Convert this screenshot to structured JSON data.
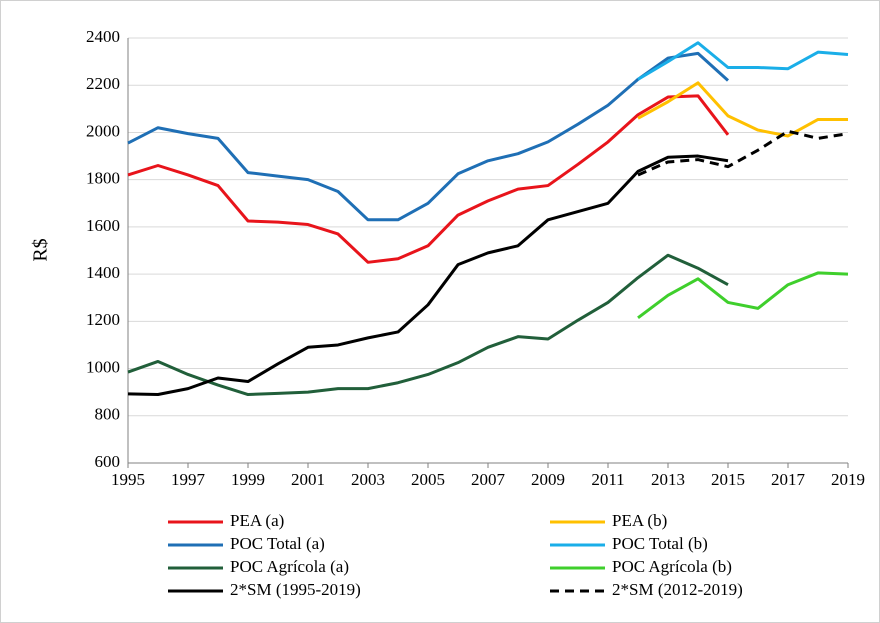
{
  "chart_data": {
    "type": "line",
    "y_label": "R$",
    "x": [
      1995,
      1996,
      1997,
      1998,
      1999,
      2000,
      2001,
      2002,
      2003,
      2004,
      2005,
      2006,
      2007,
      2008,
      2009,
      2010,
      2011,
      2012,
      2013,
      2014,
      2015,
      2016,
      2017,
      2018,
      2019
    ],
    "xlim": [
      1995,
      2019
    ],
    "xticks": [
      1995,
      1997,
      1999,
      2001,
      2003,
      2005,
      2007,
      2009,
      2011,
      2013,
      2015,
      2017,
      2019
    ],
    "ylim": [
      600,
      2400
    ],
    "yticks": [
      600,
      800,
      1000,
      1200,
      1400,
      1600,
      1800,
      2000,
      2200,
      2400
    ],
    "grid": true,
    "series": [
      {
        "name": "PEA (a)",
        "color": "#e8141b",
        "values": [
          1820,
          1860,
          1820,
          1775,
          1625,
          1620,
          1610,
          1570,
          1450,
          1465,
          1520,
          1650,
          1710,
          1760,
          1775,
          1865,
          1960,
          2075,
          2150,
          2155,
          1990,
          null,
          null,
          null,
          null
        ]
      },
      {
        "name": "PEA (b)",
        "color": "#ffc000",
        "values": [
          null,
          null,
          null,
          null,
          null,
          null,
          null,
          null,
          null,
          null,
          null,
          null,
          null,
          null,
          null,
          null,
          null,
          2060,
          2130,
          2210,
          2070,
          2010,
          1985,
          2055,
          2055
        ]
      },
      {
        "name": "POC Total (a)",
        "color": "#1f6fb5",
        "values": [
          1955,
          2020,
          1995,
          1975,
          1830,
          1815,
          1800,
          1750,
          1630,
          1630,
          1700,
          1825,
          1880,
          1910,
          1960,
          2035,
          2115,
          2225,
          2315,
          2335,
          2220,
          null,
          null,
          null,
          null
        ]
      },
      {
        "name": "POC Total (b)",
        "color": "#1aaee8",
        "values": [
          null,
          null,
          null,
          null,
          null,
          null,
          null,
          null,
          null,
          null,
          null,
          null,
          null,
          null,
          null,
          null,
          null,
          2225,
          2300,
          2380,
          2275,
          2275,
          2270,
          2340,
          2330
        ]
      },
      {
        "name": "POC Agrícola (a)",
        "color": "#215f3a",
        "values": [
          985,
          1030,
          975,
          930,
          890,
          895,
          900,
          915,
          915,
          940,
          975,
          1025,
          1090,
          1135,
          1125,
          1205,
          1280,
          1385,
          1480,
          1425,
          1355,
          null,
          null,
          null,
          null
        ]
      },
      {
        "name": "POC Agrícola (b)",
        "color": "#3fcf2c",
        "values": [
          null,
          null,
          null,
          null,
          null,
          null,
          null,
          null,
          null,
          null,
          null,
          null,
          null,
          null,
          null,
          null,
          null,
          1215,
          1310,
          1380,
          1280,
          1255,
          1355,
          1405,
          1400
        ]
      },
      {
        "name": "2*SM (1995-2019)",
        "color": "#000000",
        "values": [
          893,
          890,
          915,
          960,
          945,
          1020,
          1090,
          1100,
          1130,
          1155,
          1270,
          1440,
          1490,
          1520,
          1630,
          1665,
          1700,
          1835,
          1895,
          1900,
          1880,
          null,
          null,
          null,
          null
        ]
      },
      {
        "name": "2*SM (2012-2019)",
        "color": "#000000",
        "dash": true,
        "values": [
          null,
          null,
          null,
          null,
          null,
          null,
          null,
          null,
          null,
          null,
          null,
          null,
          null,
          null,
          null,
          null,
          null,
          1820,
          1875,
          1885,
          1855,
          1925,
          2005,
          1975,
          1995
        ]
      }
    ]
  }
}
